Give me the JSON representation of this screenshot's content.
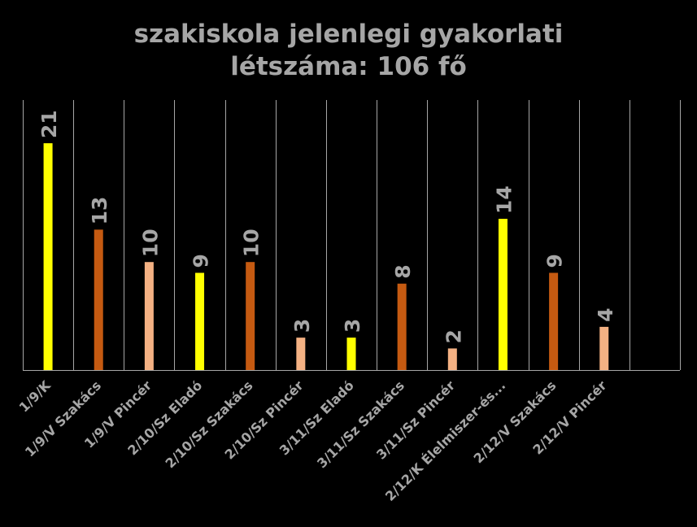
{
  "chart_data": {
    "type": "bar",
    "title": "szakiskola jelenlegi  gyakorlati létszáma: 106 fő",
    "title_lines": [
      "szakiskola jelenlegi  gyakorlati",
      "létszáma: 106 fő"
    ],
    "categories": [
      "1/9/K",
      "1/9/V Szakács",
      "1/9/V Pincér",
      "2/10/Sz Eladó",
      "2/10/Sz Szakács",
      "2/10/Sz Pincér",
      "3/11/Sz Eladó",
      "3/11/Sz Szakács",
      "3/11/Sz Pincér",
      "2/12/K Élelmiszer-és...",
      "2/12/V Szakács",
      "2/12/V Pincér",
      ""
    ],
    "values": [
      21,
      13,
      10,
      9,
      10,
      3,
      3,
      8,
      2,
      14,
      9,
      4,
      null
    ],
    "bar_colors": [
      "#ffff00",
      "#c55a11",
      "#f4b183",
      "#ffff00",
      "#c55a11",
      "#f4b183",
      "#ffff00",
      "#c55a11",
      "#f4b183",
      "#ffff00",
      "#c55a11",
      "#f4b183",
      "#000000"
    ],
    "xlabel": "",
    "ylabel": "",
    "ylim": [
      0,
      25
    ],
    "grid": "vertical",
    "legend": "none",
    "colors": {
      "background": "#000000",
      "text": "#a6a6a6",
      "gridline": "#a6a6a6"
    }
  }
}
